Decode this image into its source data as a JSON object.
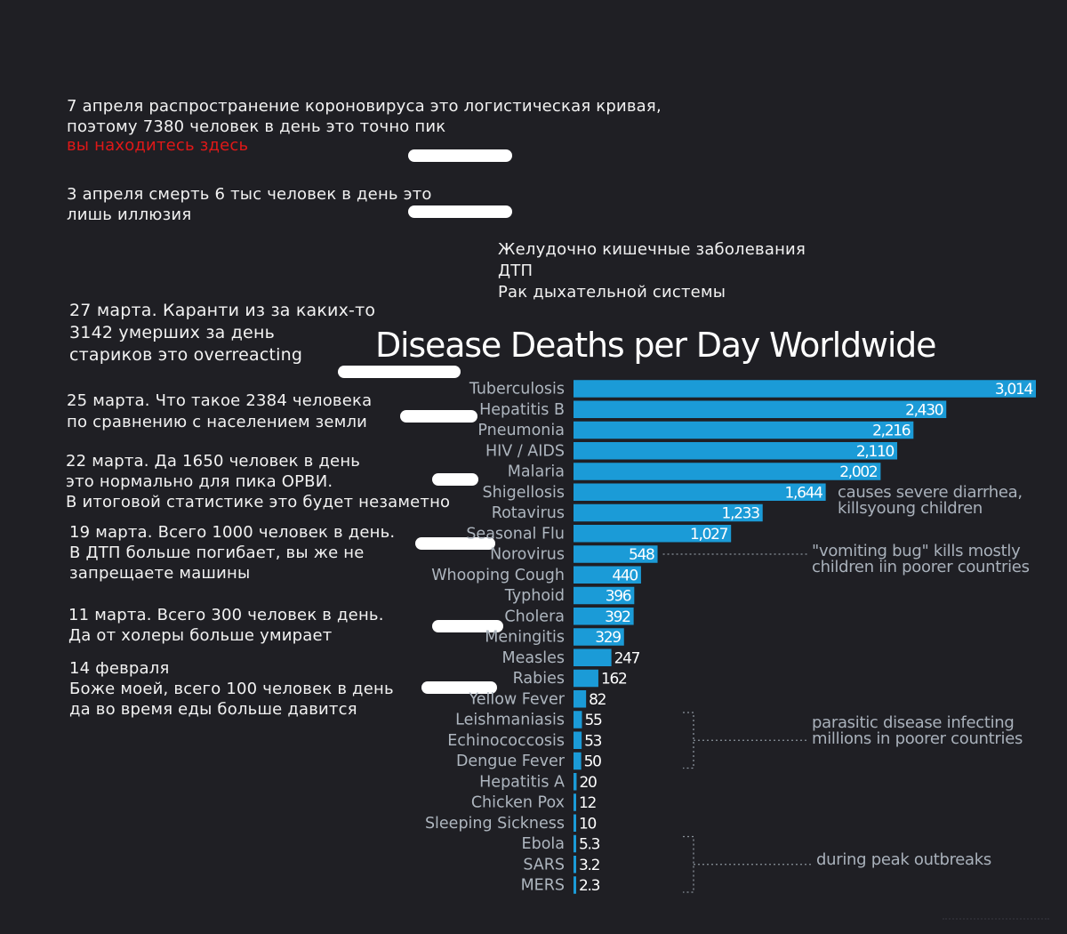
{
  "notes": {
    "n1_line1": "7 апреля распространение короновируса это логистическая кривая,",
    "n1_line2": "поэтому 7380 человек в день это точно пик",
    "n1_red": "вы находитесь здесь",
    "n2": "3 апреля смерть 6 тыс человек в день это\nлишь иллюзия",
    "n3": "Желудочно кишечные заболевания\nДТП\nРак дыхательной системы",
    "n4": "27 марта. Каранти из за каких-то\n3142 умерших за день\nстариков это overreacting",
    "n5": "25 марта. Что такое 2384 человека\nпо сравнению с населением земли",
    "n6": "22 марта. Да 1650 человек в день\n это нормально для пика ОРВИ.\nВ итоговой статистике это будет незаметно",
    "n7": "19 марта. Всего 1000 человек в день.\n В ДТП больше погибает, вы же не\nзапрещаете машины",
    "n8": "11 марта. Всего 300 человек в день.\n Да от холеры больше умирает",
    "n9": "14 февраля\nБоже моей, всего 100 человек в день\n да во время еды больше давится"
  },
  "chart_data": {
    "type": "bar",
    "orientation": "horizontal",
    "title": "Disease Deaths per Day Worldwide",
    "bar_color": "#1b9bd7",
    "categories": [
      "Tuberculosis",
      "Hepatitis B",
      "Pneumonia",
      "HIV / AIDS",
      "Malaria",
      "Shigellosis",
      "Rotavirus",
      "Seasonal Flu",
      "Norovirus",
      "Whooping Cough",
      "Typhoid",
      "Cholera",
      "Meningitis",
      "Measles",
      "Rabies",
      "Yellow Fever",
      "Leishmaniasis",
      "Echinococcosis",
      "Dengue Fever",
      "Hepatitis A",
      "Chicken Pox",
      "Sleeping Sickness",
      "Ebola",
      "SARS",
      "MERS"
    ],
    "values": [
      3014,
      2430,
      2216,
      2110,
      2002,
      1644,
      1233,
      1027,
      548,
      440,
      396,
      392,
      329,
      247,
      162,
      82,
      55,
      53,
      50,
      20,
      12,
      10,
      5.3,
      3.2,
      2.3
    ],
    "labels": [
      "3,014",
      "2,430",
      "2,216",
      "2,110",
      "2,002",
      "1,644",
      "1,233",
      "1,027",
      "548",
      "440",
      "396",
      "392",
      "329",
      "247",
      "162",
      "82",
      "55",
      "53",
      "50",
      "20",
      "12",
      "10",
      "5.3",
      "3.2",
      "2.3"
    ],
    "annotations": [
      {
        "text": "causes severe diarrhea,\nkillsyoung children",
        "rows": [
          "Shigellosis",
          "Rotavirus"
        ]
      },
      {
        "text": "\"vomiting bug\" kills mostly\nchildren iin poorer countries",
        "rows": [
          "Norovirus"
        ]
      },
      {
        "text": "parasitic disease infecting\nmillions in poorer countries",
        "rows": [
          "Leishmaniasis",
          "Echinococcosis",
          "Dengue Fever"
        ]
      },
      {
        "text": "during peak outbreaks",
        "rows": [
          "Ebola",
          "SARS",
          "MERS"
        ]
      }
    ]
  }
}
